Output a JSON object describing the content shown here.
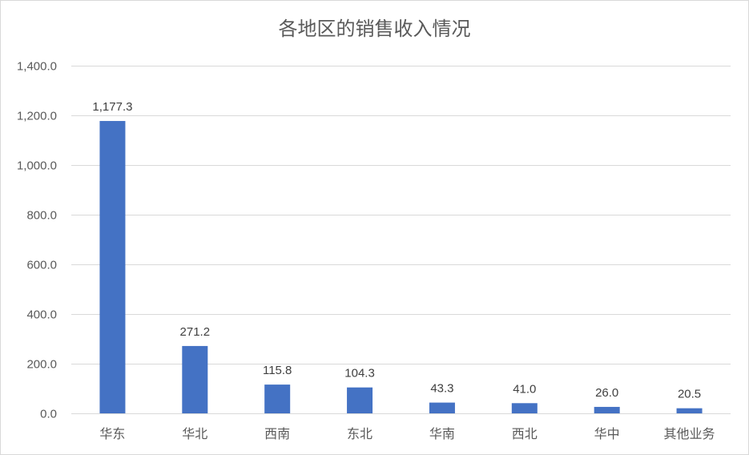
{
  "chart_data": {
    "type": "bar",
    "title": "各地区的销售收入情况",
    "xlabel": "",
    "ylabel": "",
    "categories": [
      "华东",
      "华北",
      "西南",
      "东北",
      "华南",
      "西北",
      "华中",
      "其他业务"
    ],
    "values": [
      1177.3,
      271.2,
      115.8,
      104.3,
      43.3,
      41.0,
      26.0,
      20.5
    ],
    "data_labels": [
      "1,177.3",
      "271.2",
      "115.8",
      "104.3",
      "43.3",
      "41.0",
      "26.0",
      "20.5"
    ],
    "ylim": [
      0,
      1400
    ],
    "yticks": [
      0,
      200,
      400,
      600,
      800,
      1000,
      1200,
      1400
    ],
    "ytick_labels": [
      "0.0",
      "200.0",
      "400.0",
      "600.0",
      "800.0",
      "1,000.0",
      "1,200.0",
      "1,400.0"
    ],
    "grid": true,
    "legend": "none",
    "bar_color": "#4472c4"
  }
}
